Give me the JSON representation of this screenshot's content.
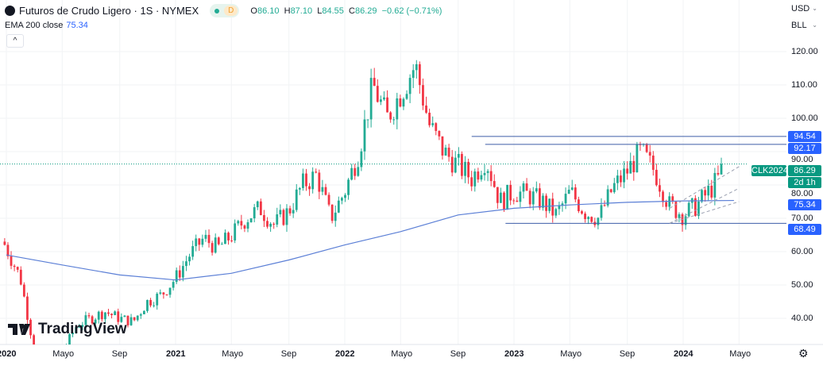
{
  "header": {
    "title": "Futuros de Crudo Ligero · 1S · NYMEX",
    "status_badge": "D",
    "ohlc": {
      "o_label": "O",
      "o": "86.10",
      "h_label": "H",
      "h": "87.10",
      "l_label": "L",
      "l": "84.55",
      "c_label": "C",
      "c": "86.29",
      "change": "−0.62 (−0.71%)"
    },
    "indicator": {
      "label": "EMA 200 close",
      "value": "75.34"
    },
    "collapse_icon": "chevron-up"
  },
  "scale": {
    "currency": "USD",
    "unit": "BLL"
  },
  "colors": {
    "up": "#22ab94",
    "down": "#f23645",
    "ema": "#5b7fd6",
    "level": "#3d5ea8",
    "label_blue": "#2962ff",
    "last": "#089981"
  },
  "watermark": "TradingView",
  "chart_data": {
    "type": "candlestick",
    "interval": "weekly",
    "ylim": [
      32,
      130
    ],
    "y_ticks": [
      "40.00",
      "50.00",
      "60.00",
      "70.00",
      "80.00",
      "90.00",
      "100.00",
      "110.00",
      "120.00"
    ],
    "x_ticks": [
      [
        "2020",
        2020.0
      ],
      [
        "Mayo",
        2020.33
      ],
      [
        "Sep",
        2020.67
      ],
      [
        "2021",
        2021.0
      ],
      [
        "Mayo",
        2021.33
      ],
      [
        "Sep",
        2021.67
      ],
      [
        "2022",
        2022.0
      ],
      [
        "Mayo",
        2022.33
      ],
      [
        "Sep",
        2022.67
      ],
      [
        "2023",
        2023.0
      ],
      [
        "Mayo",
        2023.33
      ],
      [
        "Sep",
        2023.67
      ],
      [
        "2024",
        2024.0
      ],
      [
        "Mayo",
        2024.33
      ]
    ],
    "monthly_close": [
      61,
      52,
      30,
      20,
      30,
      38,
      40,
      42,
      40,
      39,
      45,
      47,
      52,
      59,
      64,
      61,
      65,
      70,
      73,
      68,
      72,
      80,
      83,
      70,
      78,
      90,
      110,
      100,
      108,
      116,
      98,
      90,
      86,
      82,
      88,
      75,
      78,
      77,
      75,
      71,
      78,
      72,
      70,
      79,
      84,
      90,
      84,
      74,
      71,
      74,
      79,
      85
    ],
    "ema_200": [
      [
        2020.0,
        59
      ],
      [
        2020.33,
        56
      ],
      [
        2020.67,
        53
      ],
      [
        2021.0,
        51.5
      ],
      [
        2021.33,
        53.5
      ],
      [
        2021.67,
        57.5
      ],
      [
        2022.0,
        62
      ],
      [
        2022.33,
        66
      ],
      [
        2022.67,
        71
      ],
      [
        2023.0,
        73
      ],
      [
        2023.33,
        74
      ],
      [
        2023.67,
        74.8
      ],
      [
        2024.0,
        75.2
      ],
      [
        2024.3,
        75.34
      ]
    ],
    "levels": [
      {
        "price": 94.54,
        "label": "94.54",
        "from": 2022.75
      },
      {
        "price": 92.17,
        "label": "92.17",
        "from": 2022.83
      },
      {
        "price": 68.49,
        "label": "68.49",
        "from": 2022.95
      }
    ],
    "last": {
      "symbol": "CLK2024",
      "price": 86.29,
      "label": "86.29",
      "countdown": "2d 1h"
    },
    "ema_label": "75.34",
    "channel": [
      [
        [
          2023.92,
          68.5
        ],
        [
          2024.33,
          79
        ]
      ],
      [
        [
          2023.92,
          73
        ],
        [
          2024.33,
          85.5
        ]
      ],
      [
        [
          2023.92,
          68.5
        ],
        [
          2024.33,
          75
        ]
      ]
    ]
  }
}
